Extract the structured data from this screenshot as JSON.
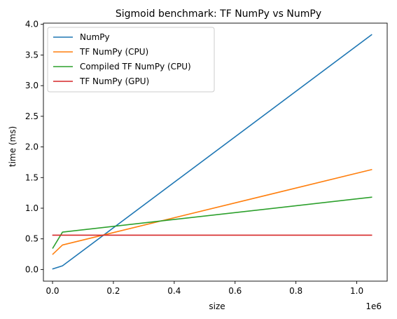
{
  "chart_data": {
    "type": "line",
    "title": "Sigmoid benchmark: TF NumPy vs NumPy",
    "xlabel": "size",
    "ylabel": "time (ms)",
    "x_offset_label": "1e6",
    "xlim": [
      -30000,
      1100000
    ],
    "ylim": [
      -0.19,
      4.02
    ],
    "x_ticks": [
      0,
      200000,
      400000,
      600000,
      800000,
      1000000
    ],
    "x_tick_labels": [
      "0.0",
      "0.2",
      "0.4",
      "0.6",
      "0.8",
      "1.0"
    ],
    "y_ticks": [
      0.0,
      0.5,
      1.0,
      1.5,
      2.0,
      2.5,
      3.0,
      3.5,
      4.0
    ],
    "y_tick_labels": [
      "0.0",
      "0.5",
      "1.0",
      "1.5",
      "2.0",
      "2.5",
      "3.0",
      "3.5",
      "4.0"
    ],
    "grid": false,
    "legend_position": "upper-left",
    "series": [
      {
        "name": "NumPy",
        "color": "#1f77b4",
        "x": [
          1024,
          32768,
          1048576
        ],
        "y": [
          0.01,
          0.06,
          3.83
        ]
      },
      {
        "name": "TF NumPy (CPU)",
        "color": "#ff7f0e",
        "x": [
          1024,
          32768,
          1048576
        ],
        "y": [
          0.25,
          0.4,
          1.63
        ]
      },
      {
        "name": "Compiled TF NumPy (CPU)",
        "color": "#2ca02c",
        "x": [
          1024,
          32768,
          1048576
        ],
        "y": [
          0.35,
          0.61,
          1.18
        ]
      },
      {
        "name": "TF NumPy (GPU)",
        "color": "#d62728",
        "x": [
          1024,
          32768,
          1048576
        ],
        "y": [
          0.56,
          0.56,
          0.56
        ]
      }
    ]
  }
}
